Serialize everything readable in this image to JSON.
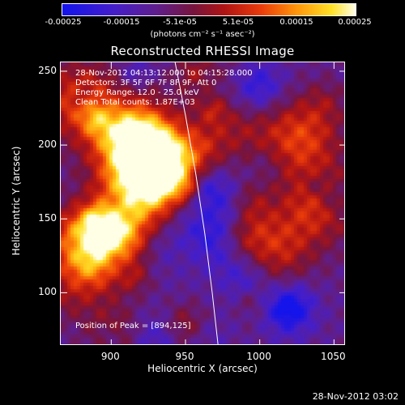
{
  "colorbar": {
    "ticks": [
      "-0.00025",
      "-0.00015",
      "-5.1e-05",
      "5.1e-05",
      "0.00015",
      "0.00025"
    ],
    "units": "(photons cm⁻² s⁻¹ asec⁻²)",
    "range": [
      -0.00025,
      0.00025
    ]
  },
  "info": {
    "time": "28-Nov-2012 04:13:12.000 to 04:15:28.000",
    "detectors": "Detectors: 3F 5F 6F 7F 8F 9F, Att 0",
    "energy": "Energy Range: 12.0 - 25.0 keV",
    "clean": "Clean    Total counts: 1.87E+03",
    "peak": "Position of Peak = [894,125]"
  },
  "footer": "28-Nov-2012 03:02",
  "chart_data": {
    "type": "heatmap",
    "title": "Reconstructed RHESSI Image",
    "xlabel": "Heliocentric X (arcsec)",
    "ylabel": "Heliocentric Y (arcsec)",
    "xlim": [
      866,
      1058
    ],
    "ylim": [
      64,
      256
    ],
    "xticks": [
      "900",
      "950",
      "1000",
      "1050"
    ],
    "yticks": [
      "100",
      "150",
      "200",
      "250"
    ],
    "xtick_values": [
      900,
      950,
      1000,
      1050
    ],
    "ytick_values": [
      100,
      150,
      200,
      250
    ],
    "peak": [
      894,
      125
    ],
    "limb_curve": [
      [
        943,
        256
      ],
      [
        950,
        220
      ],
      [
        957,
        180
      ],
      [
        963,
        140
      ],
      [
        968,
        100
      ],
      [
        972,
        64
      ]
    ],
    "colormap": "blue-purple-red-orange-yellow-white",
    "hotspots": [
      {
        "x": 912,
        "y": 200,
        "amp": 0.95
      },
      {
        "x": 925,
        "y": 175,
        "amp": 0.9
      },
      {
        "x": 935,
        "y": 190,
        "amp": 0.85
      },
      {
        "x": 900,
        "y": 140,
        "amp": 0.75
      },
      {
        "x": 885,
        "y": 125,
        "amp": 0.8
      },
      {
        "x": 880,
        "y": 230,
        "amp": 0.6
      },
      {
        "x": 1028,
        "y": 205,
        "amp": 0.55
      },
      {
        "x": 1040,
        "y": 160,
        "amp": 0.5
      },
      {
        "x": 1010,
        "y": 130,
        "amp": 0.45
      },
      {
        "x": 985,
        "y": 215,
        "amp": 0.3
      }
    ],
    "coldspots": [
      {
        "x": 1020,
        "y": 88,
        "amp": 0.9
      },
      {
        "x": 1000,
        "y": 240,
        "amp": 0.6
      },
      {
        "x": 970,
        "y": 170,
        "amp": 0.5
      },
      {
        "x": 990,
        "y": 110,
        "amp": 0.55
      }
    ]
  }
}
